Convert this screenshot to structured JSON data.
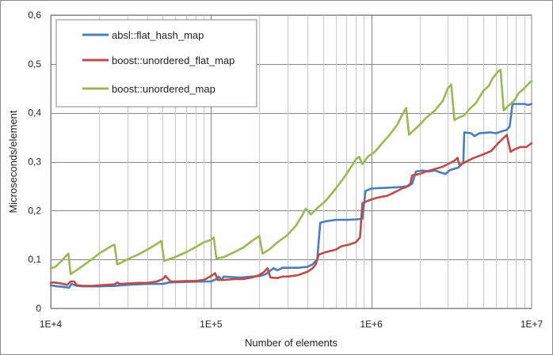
{
  "chart_data": {
    "type": "line",
    "title": "",
    "xlabel": "Number of elements",
    "ylabel": "Microseconds/element",
    "x_scale": "log",
    "xlim": [
      10000,
      10000000
    ],
    "ylim": [
      0,
      0.6
    ],
    "grid": true,
    "legend_placement": "top-left",
    "x_tick_labels": [
      "1E+4",
      "1E+5",
      "1E+6",
      "1E+7"
    ],
    "y_ticks": [
      0,
      0.1,
      0.2,
      0.3,
      0.4,
      0.5,
      0.6
    ],
    "y_tick_labels": [
      "0",
      "0,1",
      "0,2",
      "0,3",
      "0,4",
      "0,5",
      "0,6"
    ],
    "series": [
      {
        "name": "absl::flat_hash_map",
        "color": "#4a7ebb",
        "points": [
          [
            10000,
            0.047
          ],
          [
            11000,
            0.045
          ],
          [
            12000,
            0.044
          ],
          [
            13000,
            0.042
          ],
          [
            13500,
            0.05
          ],
          [
            14500,
            0.046
          ],
          [
            16000,
            0.045
          ],
          [
            20000,
            0.045
          ],
          [
            25000,
            0.046
          ],
          [
            30000,
            0.048
          ],
          [
            40000,
            0.05
          ],
          [
            50000,
            0.05
          ],
          [
            55000,
            0.053
          ],
          [
            70000,
            0.054
          ],
          [
            90000,
            0.055
          ],
          [
            100000,
            0.055
          ],
          [
            108000,
            0.06
          ],
          [
            112000,
            0.065
          ],
          [
            116000,
            0.058
          ],
          [
            120000,
            0.065
          ],
          [
            150000,
            0.063
          ],
          [
            200000,
            0.066
          ],
          [
            220000,
            0.07
          ],
          [
            230000,
            0.075
          ],
          [
            245000,
            0.082
          ],
          [
            260000,
            0.078
          ],
          [
            280000,
            0.083
          ],
          [
            350000,
            0.083
          ],
          [
            400000,
            0.085
          ],
          [
            430000,
            0.09
          ],
          [
            460000,
            0.1
          ],
          [
            480000,
            0.175
          ],
          [
            520000,
            0.178
          ],
          [
            600000,
            0.181
          ],
          [
            700000,
            0.181
          ],
          [
            800000,
            0.182
          ],
          [
            880000,
            0.183
          ],
          [
            920000,
            0.24
          ],
          [
            1000000,
            0.245
          ],
          [
            1100000,
            0.246
          ],
          [
            1300000,
            0.247
          ],
          [
            1500000,
            0.248
          ],
          [
            1700000,
            0.25
          ],
          [
            1800000,
            0.255
          ],
          [
            1900000,
            0.28
          ],
          [
            2100000,
            0.282
          ],
          [
            2300000,
            0.28
          ],
          [
            2500000,
            0.282
          ],
          [
            2700000,
            0.278
          ],
          [
            2900000,
            0.275
          ],
          [
            3100000,
            0.283
          ],
          [
            3500000,
            0.288
          ],
          [
            3750000,
            0.298
          ],
          [
            3800000,
            0.36
          ],
          [
            4200000,
            0.358
          ],
          [
            4400000,
            0.352
          ],
          [
            4700000,
            0.358
          ],
          [
            5500000,
            0.36
          ],
          [
            6000000,
            0.358
          ],
          [
            6500000,
            0.362
          ],
          [
            7000000,
            0.365
          ],
          [
            7300000,
            0.372
          ],
          [
            7600000,
            0.418
          ],
          [
            8500000,
            0.418
          ],
          [
            9000000,
            0.418
          ],
          [
            9500000,
            0.416
          ],
          [
            10000000,
            0.418
          ]
        ]
      },
      {
        "name": "boost::unordered_flat_map",
        "color": "#be4b48",
        "points": [
          [
            10000,
            0.052
          ],
          [
            10500,
            0.053
          ],
          [
            11000,
            0.052
          ],
          [
            12000,
            0.05
          ],
          [
            12700,
            0.048
          ],
          [
            13300,
            0.055
          ],
          [
            14000,
            0.055
          ],
          [
            14600,
            0.047
          ],
          [
            16000,
            0.046
          ],
          [
            18000,
            0.046
          ],
          [
            20000,
            0.047
          ],
          [
            22000,
            0.048
          ],
          [
            25000,
            0.049
          ],
          [
            26000,
            0.053
          ],
          [
            27000,
            0.05
          ],
          [
            30000,
            0.051
          ],
          [
            35000,
            0.052
          ],
          [
            40000,
            0.052
          ],
          [
            46000,
            0.055
          ],
          [
            50000,
            0.06
          ],
          [
            52000,
            0.066
          ],
          [
            56000,
            0.055
          ],
          [
            60000,
            0.055
          ],
          [
            70000,
            0.056
          ],
          [
            80000,
            0.056
          ],
          [
            90000,
            0.058
          ],
          [
            100000,
            0.066
          ],
          [
            106000,
            0.072
          ],
          [
            110000,
            0.058
          ],
          [
            120000,
            0.058
          ],
          [
            140000,
            0.06
          ],
          [
            160000,
            0.06
          ],
          [
            180000,
            0.063
          ],
          [
            200000,
            0.068
          ],
          [
            215000,
            0.075
          ],
          [
            225000,
            0.082
          ],
          [
            235000,
            0.063
          ],
          [
            260000,
            0.062
          ],
          [
            280000,
            0.065
          ],
          [
            300000,
            0.065
          ],
          [
            350000,
            0.068
          ],
          [
            400000,
            0.075
          ],
          [
            430000,
            0.082
          ],
          [
            450000,
            0.09
          ],
          [
            470000,
            0.11
          ],
          [
            520000,
            0.115
          ],
          [
            600000,
            0.12
          ],
          [
            650000,
            0.127
          ],
          [
            720000,
            0.13
          ],
          [
            800000,
            0.135
          ],
          [
            850000,
            0.145
          ],
          [
            880000,
            0.215
          ],
          [
            950000,
            0.22
          ],
          [
            1050000,
            0.225
          ],
          [
            1150000,
            0.228
          ],
          [
            1250000,
            0.23
          ],
          [
            1350000,
            0.235
          ],
          [
            1450000,
            0.24
          ],
          [
            1550000,
            0.245
          ],
          [
            1650000,
            0.248
          ],
          [
            1750000,
            0.255
          ],
          [
            1800000,
            0.272
          ],
          [
            2000000,
            0.275
          ],
          [
            2200000,
            0.28
          ],
          [
            2500000,
            0.285
          ],
          [
            2800000,
            0.29
          ],
          [
            3000000,
            0.295
          ],
          [
            3300000,
            0.302
          ],
          [
            3450000,
            0.308
          ],
          [
            3550000,
            0.292
          ],
          [
            3800000,
            0.298
          ],
          [
            4300000,
            0.307
          ],
          [
            5000000,
            0.315
          ],
          [
            5600000,
            0.322
          ],
          [
            6200000,
            0.338
          ],
          [
            7000000,
            0.355
          ],
          [
            7400000,
            0.32
          ],
          [
            7800000,
            0.325
          ],
          [
            8500000,
            0.33
          ],
          [
            9300000,
            0.33
          ],
          [
            10000000,
            0.338
          ]
        ]
      },
      {
        "name": "boost::unordered_map",
        "color": "#98b954",
        "points": [
          [
            10000,
            0.082
          ],
          [
            10700,
            0.085
          ],
          [
            11500,
            0.095
          ],
          [
            12300,
            0.105
          ],
          [
            12900,
            0.112
          ],
          [
            13300,
            0.07
          ],
          [
            14500,
            0.078
          ],
          [
            16000,
            0.088
          ],
          [
            18000,
            0.1
          ],
          [
            20000,
            0.112
          ],
          [
            22000,
            0.12
          ],
          [
            24000,
            0.128
          ],
          [
            25000,
            0.13
          ],
          [
            26000,
            0.09
          ],
          [
            28000,
            0.095
          ],
          [
            30000,
            0.1
          ],
          [
            35000,
            0.11
          ],
          [
            40000,
            0.12
          ],
          [
            45000,
            0.13
          ],
          [
            49000,
            0.138
          ],
          [
            51000,
            0.097
          ],
          [
            60000,
            0.105
          ],
          [
            70000,
            0.115
          ],
          [
            80000,
            0.125
          ],
          [
            90000,
            0.135
          ],
          [
            100000,
            0.14
          ],
          [
            104000,
            0.145
          ],
          [
            108000,
            0.102
          ],
          [
            120000,
            0.105
          ],
          [
            140000,
            0.115
          ],
          [
            160000,
            0.125
          ],
          [
            180000,
            0.138
          ],
          [
            200000,
            0.148
          ],
          [
            210000,
            0.112
          ],
          [
            230000,
            0.12
          ],
          [
            260000,
            0.135
          ],
          [
            300000,
            0.15
          ],
          [
            340000,
            0.17
          ],
          [
            370000,
            0.19
          ],
          [
            390000,
            0.204
          ],
          [
            420000,
            0.192
          ],
          [
            460000,
            0.205
          ],
          [
            520000,
            0.22
          ],
          [
            600000,
            0.245
          ],
          [
            650000,
            0.26
          ],
          [
            700000,
            0.275
          ],
          [
            750000,
            0.29
          ],
          [
            800000,
            0.305
          ],
          [
            840000,
            0.31
          ],
          [
            880000,
            0.295
          ],
          [
            950000,
            0.31
          ],
          [
            1050000,
            0.32
          ],
          [
            1150000,
            0.335
          ],
          [
            1300000,
            0.355
          ],
          [
            1450000,
            0.375
          ],
          [
            1550000,
            0.395
          ],
          [
            1650000,
            0.41
          ],
          [
            1720000,
            0.355
          ],
          [
            1850000,
            0.365
          ],
          [
            2000000,
            0.375
          ],
          [
            2200000,
            0.39
          ],
          [
            2500000,
            0.405
          ],
          [
            2800000,
            0.425
          ],
          [
            3000000,
            0.45
          ],
          [
            3150000,
            0.458
          ],
          [
            3300000,
            0.385
          ],
          [
            3500000,
            0.39
          ],
          [
            3800000,
            0.395
          ],
          [
            4100000,
            0.408
          ],
          [
            4500000,
            0.42
          ],
          [
            5000000,
            0.445
          ],
          [
            5400000,
            0.455
          ],
          [
            5700000,
            0.47
          ],
          [
            6200000,
            0.485
          ],
          [
            6400000,
            0.488
          ],
          [
            6700000,
            0.405
          ],
          [
            7200000,
            0.415
          ],
          [
            7800000,
            0.425
          ],
          [
            8300000,
            0.44
          ],
          [
            9000000,
            0.45
          ],
          [
            9600000,
            0.46
          ],
          [
            10000000,
            0.465
          ]
        ]
      }
    ]
  }
}
